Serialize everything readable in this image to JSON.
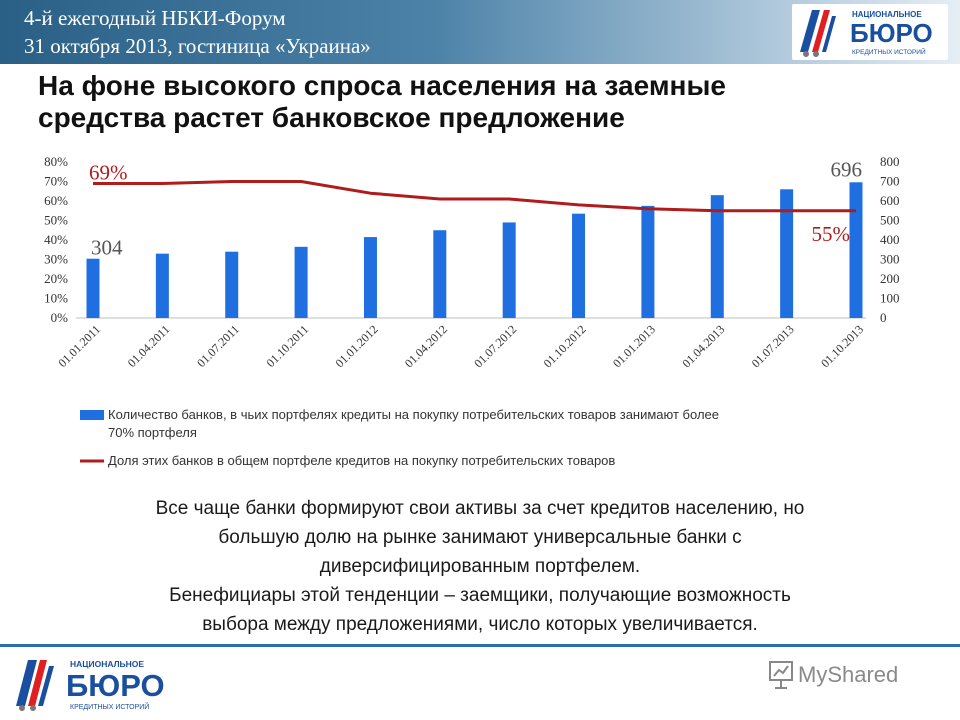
{
  "header": {
    "event_line1": "4-й ежегодный НБКИ-Форум",
    "event_line2": "31 октября 2013, гостиница «Украина»"
  },
  "logo": {
    "top_word": "НАЦИОНАЛЬНОЕ",
    "main_word": "БЮРО",
    "bottom_word": "КРЕДИТНЫХ ИСТОРИЙ"
  },
  "title": {
    "line1": "На фоне высокого спроса населения на заемные",
    "line2": "средства растет банковское предложение"
  },
  "chart_data": {
    "type": "bar",
    "categories": [
      "01.01.2011",
      "01.04.2011",
      "01.07.2011",
      "01.10.2011",
      "01.01.2012",
      "01.04.2012",
      "01.07.2012",
      "01.10.2012",
      "01.01.2013",
      "01.04.2013",
      "01.07.2013",
      "01.10.2013"
    ],
    "series": [
      {
        "name": "Количество банков, в чьих портфелях кредиты на покупку потребительских товаров занимают более 70% портфеля",
        "kind": "bar",
        "axis": "right",
        "color": "#1f6fe0",
        "values": [
          304,
          330,
          340,
          365,
          415,
          450,
          490,
          535,
          575,
          630,
          660,
          696
        ]
      },
      {
        "name": "Доля этих банков в общем портфеле кредитов на покупку потребительских товаров",
        "kind": "line",
        "axis": "left",
        "color": "#b01c1c",
        "values": [
          69,
          69,
          70,
          70,
          64,
          61,
          61,
          58,
          56,
          55,
          55,
          55
        ]
      }
    ],
    "left_axis": {
      "ticks": [
        "0%",
        "10%",
        "20%",
        "30%",
        "40%",
        "50%",
        "60%",
        "70%",
        "80%"
      ],
      "ylim": [
        0,
        80
      ]
    },
    "right_axis": {
      "ticks": [
        "0",
        "100",
        "200",
        "300",
        "400",
        "500",
        "600",
        "700",
        "800"
      ],
      "ylim": [
        0,
        800
      ]
    },
    "annotations": {
      "first_bar": "304",
      "last_bar": "696",
      "first_line": "69%",
      "last_line": "55%"
    },
    "grid": false,
    "legend_position": "bottom"
  },
  "legend": {
    "bar_label_line1": "Количество банков, в чьих портфелях кредиты на покупку потребительских товаров занимают более",
    "bar_label_line2": "70% портфеля",
    "line_label": "Доля этих банков в общем портфеле кредитов на покупку потребительских товаров"
  },
  "body": {
    "line1": "Все чаще банки формируют свои активы за счет кредитов населению, но",
    "line2": "большую долю на рынке занимают универсальные банки с",
    "line3": "диверсифицированным портфелем.",
    "line4": "Бенефициары этой тенденции – заемщики, получающие возможность",
    "line5": "выбора между предложениями, число которых увеличивается."
  },
  "watermark": {
    "text": "MyShared"
  },
  "colors": {
    "header": "#2a5f86",
    "bar": "#1f6fe0",
    "line": "#b01c1c",
    "brand_red": "#e02020",
    "brand_blue": "#1a4fa0"
  }
}
